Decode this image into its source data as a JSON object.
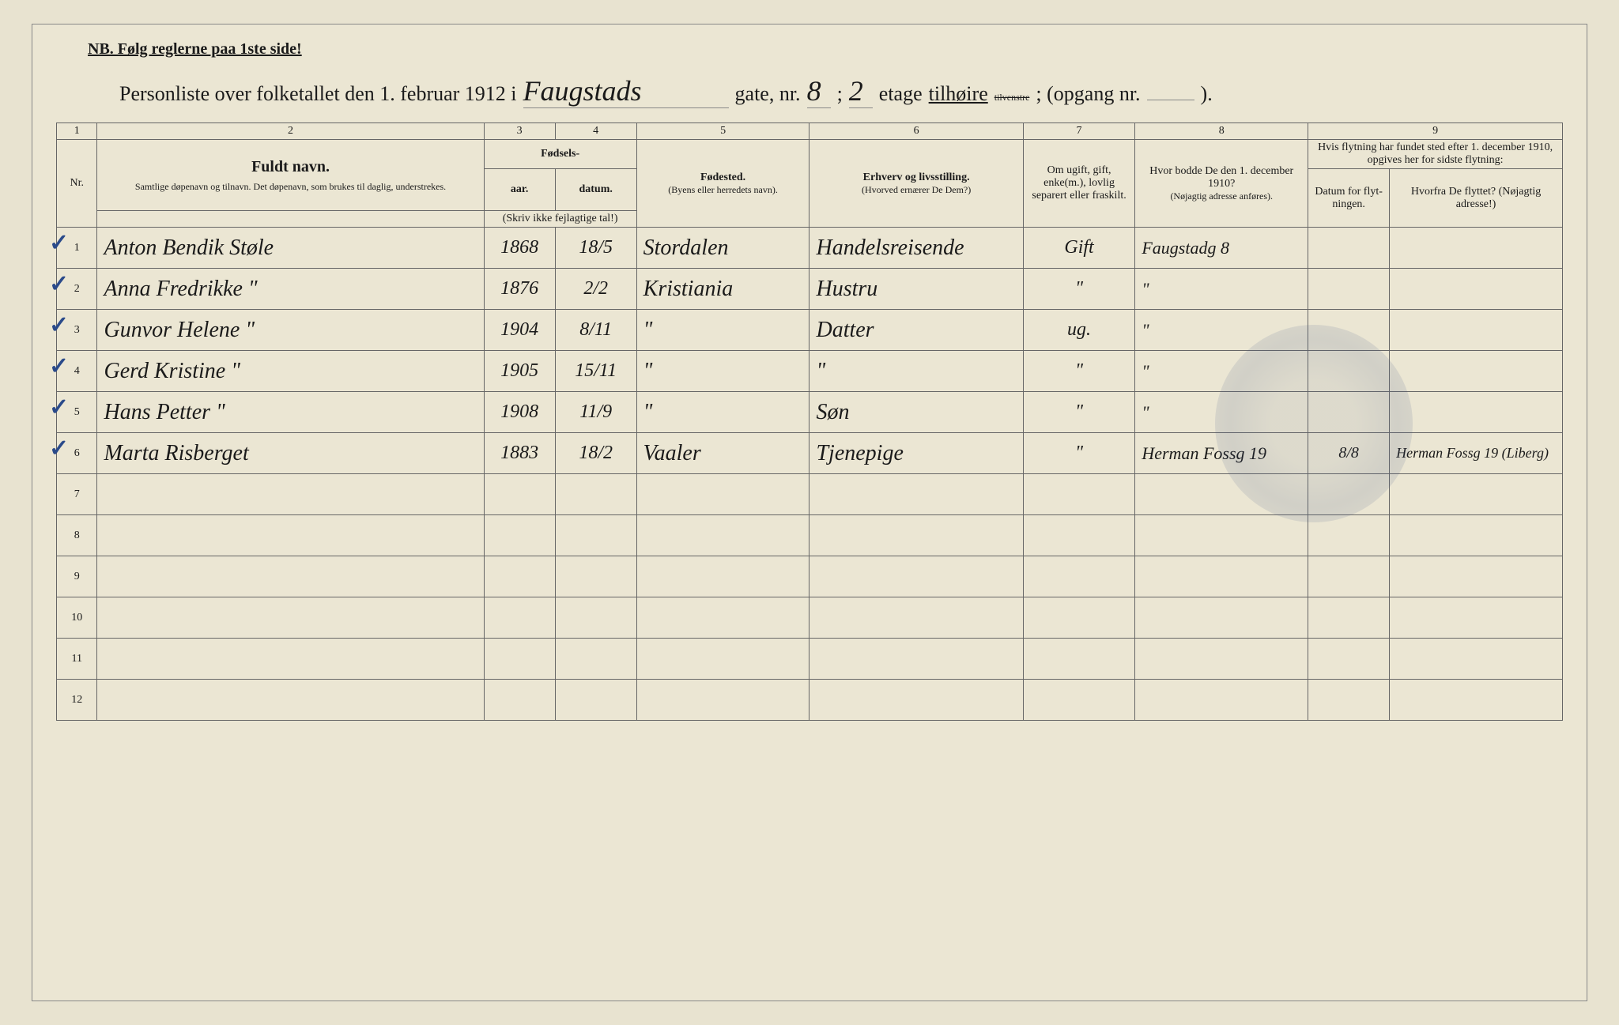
{
  "nb": "NB.  Følg reglerne paa 1ste side!",
  "title": {
    "prefix": "Personliste over folketallet den 1. februar 1912 i",
    "street": "Faugstads",
    "gate_label": "gate, nr.",
    "gate_nr": "8",
    "semicolon": ";",
    "etage_nr": "2",
    "etage_label": "etage",
    "tilhoire": "tilhøire",
    "tilvenstre": "tilvenstre",
    "opgang": "; (opgang nr.",
    "opgang_val": "",
    "end": ")."
  },
  "colnums": {
    "c1": "1",
    "c2": "2",
    "c3": "3",
    "c4": "4",
    "c5": "5",
    "c6": "6",
    "c7": "7",
    "c8": "8",
    "c9": "9"
  },
  "headers": {
    "nr": "Nr.",
    "name_title": "Fuldt navn.",
    "name_sub": "Samtlige døpenavn og tilnavn. Det døpenavn, som brukes til daglig, understrekes.",
    "fodsels": "Fødsels-",
    "aar": "aar.",
    "datum": "datum.",
    "aar_sub": "(Skriv ikke fejlagtige tal!)",
    "fodested": "Fødested.",
    "fodested_sub": "(Byens eller herredets navn).",
    "erhverv": "Erhverv og livsstilling.",
    "erhverv_sub": "(Hvorved ernærer De Dem?)",
    "ugift": "Om ugift, gift, enke(m.), lovlig separert eller fraskilt.",
    "bodde": "Hvor bodde De den 1. december 1910?",
    "bodde_sub": "(Nøjagtig adresse anføres).",
    "flyt_top": "Hvis flytning har fundet sted efter 1. december 1910, opgives her for sidste flytning:",
    "flyt_datum": "Datum for flyt-ningen.",
    "flyt_hvorfra": "Hvorfra De flyttet? (Nøjagtig adresse!)"
  },
  "rows": [
    {
      "n": "1",
      "name": "Anton Bendik Støle",
      "aar": "1868",
      "datum": "18/5",
      "sted": "Stordalen",
      "erhverv": "Handelsreisende",
      "stat": "Gift",
      "bodde": "Faugstadg 8",
      "fd": "",
      "fh": ""
    },
    {
      "n": "2",
      "name": "Anna Fredrikke   \"",
      "aar": "1876",
      "datum": "2/2",
      "sted": "Kristiania",
      "erhverv": "Hustru",
      "stat": "\"",
      "bodde": "\"",
      "fd": "",
      "fh": ""
    },
    {
      "n": "3",
      "name": "Gunvor Helene    \"",
      "aar": "1904",
      "datum": "8/11",
      "sted": "\"",
      "erhverv": "Datter",
      "stat": "ug.",
      "bodde": "\"",
      "fd": "",
      "fh": ""
    },
    {
      "n": "4",
      "name": "Gerd Kristine    \"",
      "aar": "1905",
      "datum": "15/11",
      "sted": "\"",
      "erhverv": "\"",
      "stat": "\"",
      "bodde": "\"",
      "fd": "",
      "fh": ""
    },
    {
      "n": "5",
      "name": "Hans Petter      \"",
      "aar": "1908",
      "datum": "11/9",
      "sted": "\"",
      "erhverv": "Søn",
      "stat": "\"",
      "bodde": "\"",
      "fd": "",
      "fh": ""
    },
    {
      "n": "6",
      "name": "Marta Risberget",
      "aar": "1883",
      "datum": "18/2",
      "sted": "Vaaler",
      "erhverv": "Tjenepige",
      "stat": "\"",
      "bodde": "Herman Fossg 19",
      "fd": "8/8",
      "fh": "Herman Fossg 19 (Liberg)"
    },
    {
      "n": "7",
      "name": "",
      "aar": "",
      "datum": "",
      "sted": "",
      "erhverv": "",
      "stat": "",
      "bodde": "",
      "fd": "",
      "fh": ""
    },
    {
      "n": "8",
      "name": "",
      "aar": "",
      "datum": "",
      "sted": "",
      "erhverv": "",
      "stat": "",
      "bodde": "",
      "fd": "",
      "fh": ""
    },
    {
      "n": "9",
      "name": "",
      "aar": "",
      "datum": "",
      "sted": "",
      "erhverv": "",
      "stat": "",
      "bodde": "",
      "fd": "",
      "fh": ""
    },
    {
      "n": "10",
      "name": "",
      "aar": "",
      "datum": "",
      "sted": "",
      "erhverv": "",
      "stat": "",
      "bodde": "",
      "fd": "",
      "fh": ""
    },
    {
      "n": "11",
      "name": "",
      "aar": "",
      "datum": "",
      "sted": "",
      "erhverv": "",
      "stat": "",
      "bodde": "",
      "fd": "",
      "fh": ""
    },
    {
      "n": "12",
      "name": "",
      "aar": "",
      "datum": "",
      "sted": "",
      "erhverv": "",
      "stat": "",
      "bodde": "",
      "fd": "",
      "fh": ""
    }
  ],
  "style": {
    "paper_bg": "#ebe6d3",
    "ink": "#1a1a1a",
    "pencil_check": "#2a4a8a",
    "border": "#666666",
    "handwriting_font": "Brush Script MT",
    "print_font": "Georgia",
    "checked_rows": [
      0,
      1,
      2,
      3,
      4,
      5
    ]
  }
}
